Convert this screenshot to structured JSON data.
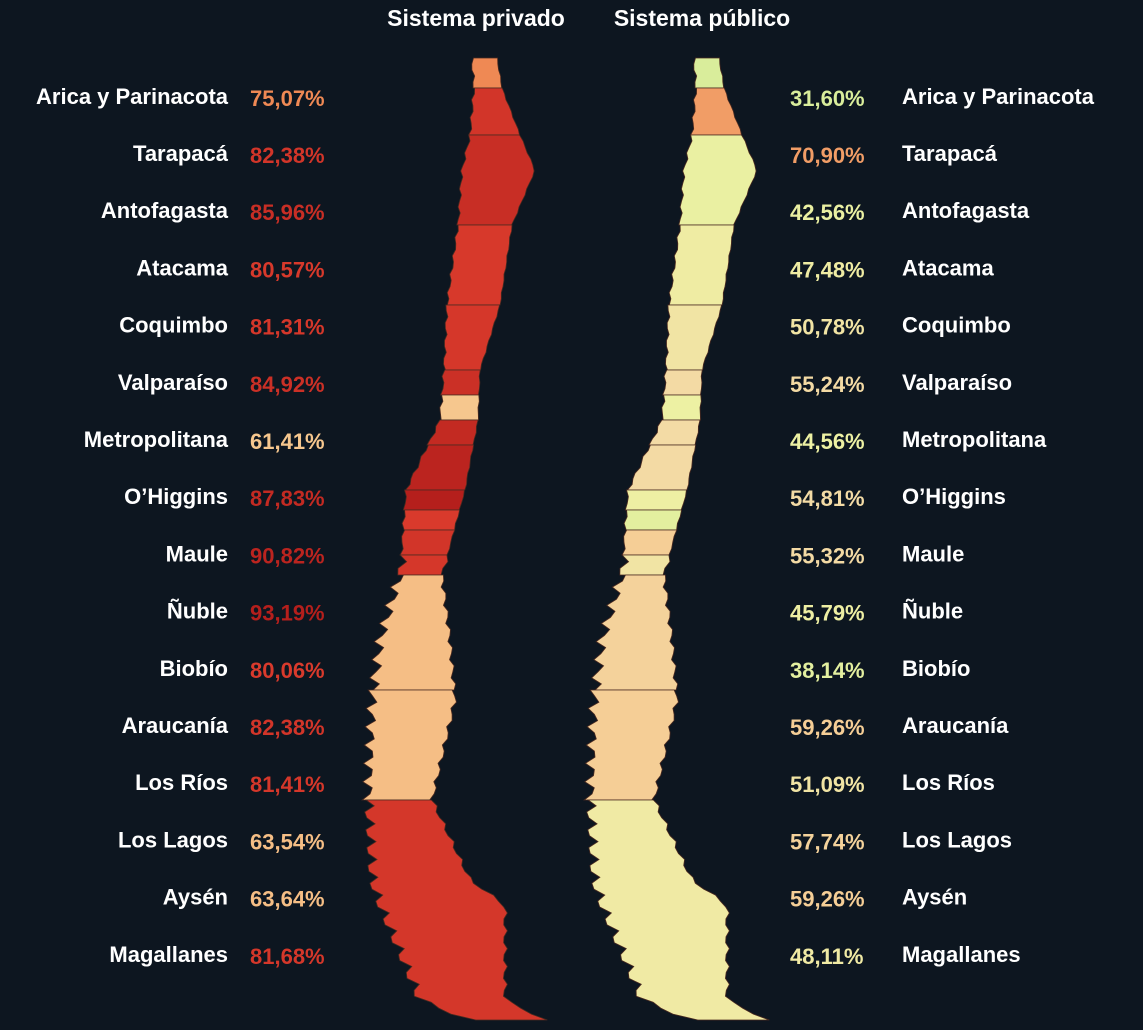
{
  "titles": {
    "private": "Sistema privado",
    "public": "Sistema público"
  },
  "regions": [
    "Arica y Parinacota",
    "Tarapacá",
    "Antofagasta",
    "Atacama",
    "Coquimbo",
    "Valparaíso",
    "Metropolitana",
    "O’Higgins",
    "Maule",
    "Ñuble",
    "Biobío",
    "Araucanía",
    "Los Ríos",
    "Los Lagos",
    "Aysén",
    "Magallanes"
  ],
  "private": {
    "values": [
      75.07,
      82.38,
      85.96,
      80.57,
      81.31,
      84.92,
      61.41,
      87.83,
      90.82,
      93.19,
      80.06,
      82.38,
      81.41,
      63.54,
      63.64,
      81.68
    ],
    "value_labels": [
      "75,07%",
      "82,38%",
      "85,96%",
      "80,57%",
      "81,31%",
      "84,92%",
      "61,41%",
      "87,83%",
      "90,82%",
      "93,19%",
      "80,06%",
      "82,38%",
      "81,41%",
      "63,54%",
      "63,64%",
      "81,68%"
    ]
  },
  "public": {
    "values": [
      31.6,
      70.9,
      42.56,
      47.48,
      50.78,
      55.24,
      44.56,
      54.81,
      55.32,
      45.79,
      38.14,
      59.26,
      51.09,
      57.74,
      59.26,
      48.11
    ],
    "value_labels": [
      "31,60%",
      "70,90%",
      "42,56%",
      "47,48%",
      "50,78%",
      "55,24%",
      "44,56%",
      "54,81%",
      "55,32%",
      "45,79%",
      "38,14%",
      "59,26%",
      "51,09%",
      "57,74%",
      "59,26%",
      "48,11%"
    ]
  }
}
